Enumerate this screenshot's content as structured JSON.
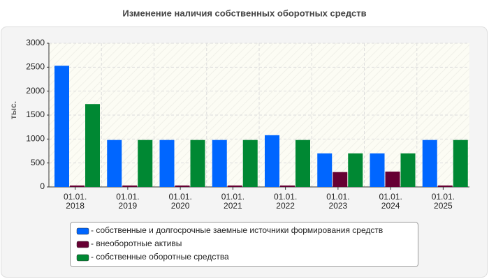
{
  "chart_data": {
    "type": "bar",
    "title": "Изменение наличия собственных оборотных средств",
    "y_label": "тыс.",
    "categories": [
      "01.01.\n2018",
      "01.01.\n2019",
      "01.01.\n2020",
      "01.01.\n2021",
      "01.01.\n2022",
      "01.01.\n2023",
      "01.01.\n2024",
      "01.01.\n2025"
    ],
    "series": [
      {
        "name": "- собственные и долгосрочные заемные источники формирования средств",
        "color": "#0066ff",
        "values": [
          2530,
          980,
          980,
          980,
          1080,
          700,
          700,
          980
        ]
      },
      {
        "name": "- внеоборотные активы",
        "color": "#660033",
        "values": [
          30,
          30,
          30,
          30,
          30,
          310,
          320,
          30
        ]
      },
      {
        "name": "- собственные оборотные средства",
        "color": "#008833",
        "values": [
          1730,
          980,
          980,
          980,
          980,
          700,
          700,
          980
        ]
      }
    ],
    "ylim": [
      0,
      3000
    ],
    "yticks": [
      0,
      500,
      1000,
      1500,
      2000,
      2500,
      3000
    ],
    "grid": true
  }
}
